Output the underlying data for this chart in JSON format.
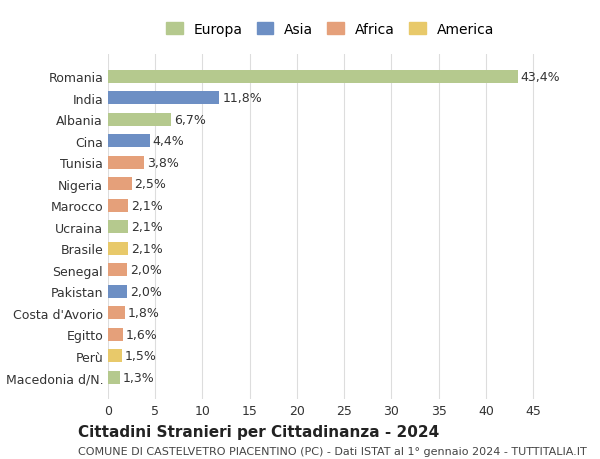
{
  "countries": [
    "Romania",
    "India",
    "Albania",
    "Cina",
    "Tunisia",
    "Nigeria",
    "Marocco",
    "Ucraina",
    "Brasile",
    "Senegal",
    "Pakistan",
    "Costa d'Avorio",
    "Egitto",
    "Perù",
    "Macedonia d/N."
  ],
  "values": [
    43.4,
    11.8,
    6.7,
    4.4,
    3.8,
    2.5,
    2.1,
    2.1,
    2.1,
    2.0,
    2.0,
    1.8,
    1.6,
    1.5,
    1.3
  ],
  "labels": [
    "43,4%",
    "11,8%",
    "6,7%",
    "4,4%",
    "3,8%",
    "2,5%",
    "2,1%",
    "2,1%",
    "2,1%",
    "2,0%",
    "2,0%",
    "1,8%",
    "1,6%",
    "1,5%",
    "1,3%"
  ],
  "continents": [
    "Europa",
    "Asia",
    "Europa",
    "Asia",
    "Africa",
    "Africa",
    "Africa",
    "Europa",
    "America",
    "Africa",
    "Asia",
    "Africa",
    "Africa",
    "America",
    "Europa"
  ],
  "continent_colors": {
    "Europa": "#b5c98e",
    "Asia": "#6d8fc4",
    "Africa": "#e5a07a",
    "America": "#e8c96a"
  },
  "legend_order": [
    "Europa",
    "Asia",
    "Africa",
    "America"
  ],
  "title": "Cittadini Stranieri per Cittadinanza - 2024",
  "subtitle": "COMUNE DI CASTELVETRO PIACENTINO (PC) - Dati ISTAT al 1° gennaio 2024 - TUTTITALIA.IT",
  "xlim": [
    0,
    47
  ],
  "xticks": [
    0,
    5,
    10,
    15,
    20,
    25,
    30,
    35,
    40,
    45
  ],
  "bg_color": "#ffffff",
  "grid_color": "#dddddd",
  "bar_height": 0.6,
  "label_fontsize": 9,
  "title_fontsize": 11,
  "subtitle_fontsize": 8,
  "tick_fontsize": 9,
  "legend_fontsize": 10
}
